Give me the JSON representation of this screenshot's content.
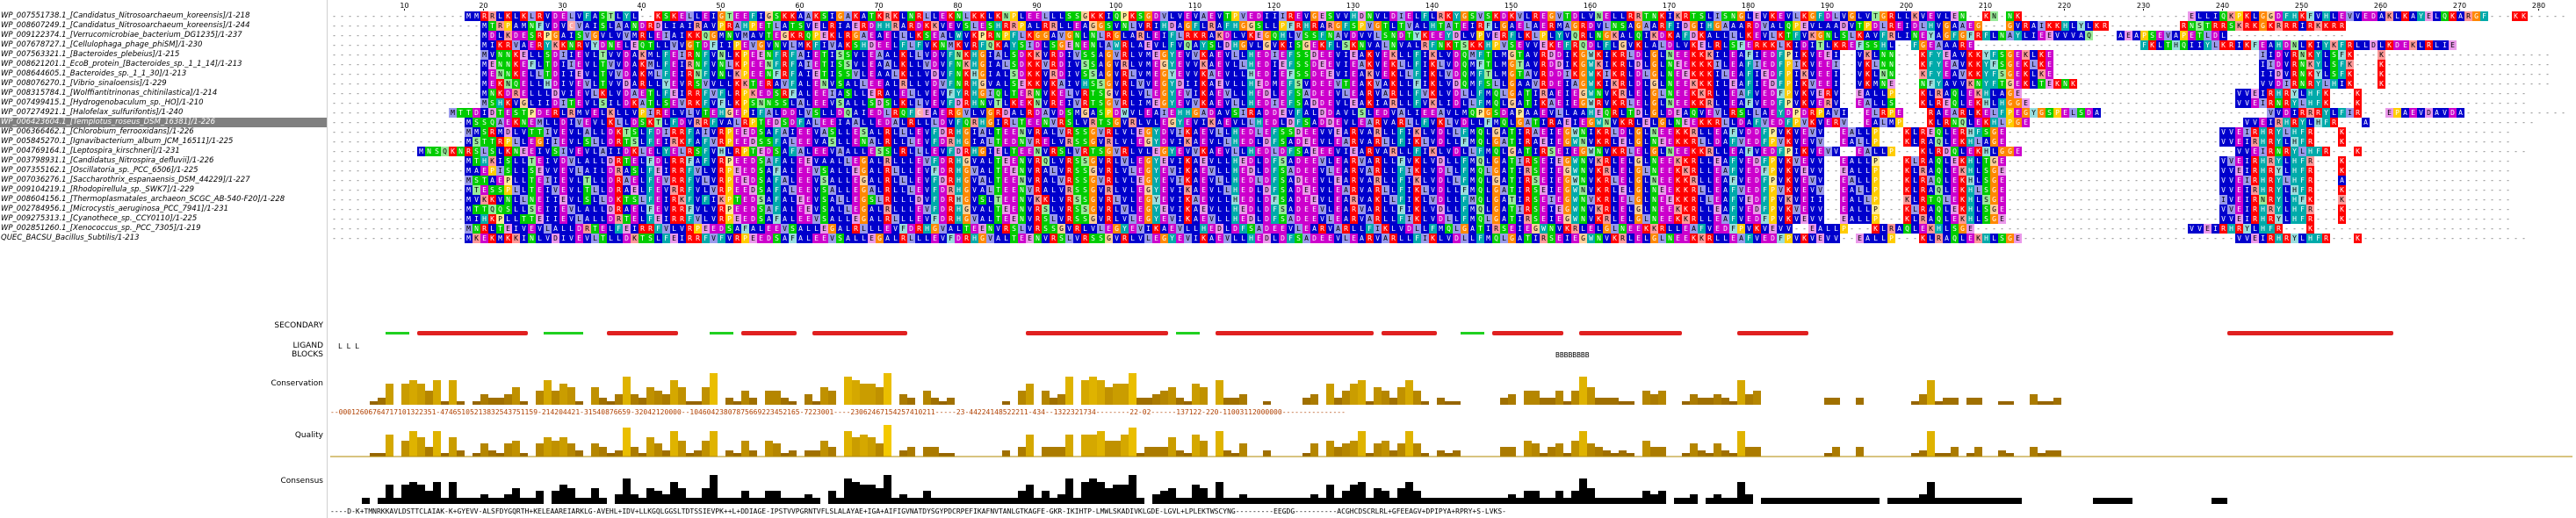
{
  "sequences": [
    {
      "name": "WP_007551738.1_[Candidatus_Nitrosoarchaeum_koreensis]/1-218",
      "seq": "-----------------MMRRLKLKLRVDELVFASTLYL--KSKELLEIGTEEFIGSKKAAKSIGAKATKRKLNRLLEKNLKKLKNPLEELLLSSGKKIQPKSGDVLVEVAEVTPVEDIIIREVGESVVHDNVLDIELFLRKYGSVSKDKVLREGVTDLVNELLRRTNKIKRTSLISNGLEVKEVLKGFDLVGLVTGRLLKVEVLEN--KN-NK---------------------ELLIQKPKLGGDFHKFVHLEVVEDAKLKAYELQKARGF---KK-----"
    },
    {
      "name": "WP_008607249.1_[Candidatus_Nitrosoarchaeum_koreensis]/1-244",
      "seq": "-------------------MTRPAMNFVDVCVAISLAANDRDLIAIRAVPRAHPETLATSVELRIAERDHHRARDKKVEVSLESHRRPALRRLLEAGGSVNLVRIHDAGFLRAFHGGSLLPFRHRARGFSPVGTLTVALHTATEIRFLGAELAERMAGRDVLNSAGAARFIDGIHGAAARDVALQPEVLAADVTPDLREIDLHVGAAEG---GVRAIKKHLYLKR---------RNSTRRSKRKGKRRRIRKKRR"
    },
    {
      "name": "WP_009122374.1_[Verrucomicrobiae_bacterium_DG1235]/1-237",
      "seq": "-------------------MDLKDESRPGAISVGVLVVMRLEIAIKKQGMNVMAVTEGKRQPEKLRGAEAELLLKSEALWVKPRNPFLKGGAVGNLNLRGLARLEIFLRKRAKDLVKEGQHLVSSFNAVDVVLSNDTYKEEYDLVPVERFLKLPLYVQRLNGKALQIKDKAFDKALLLLKEVLKTFVKGNLSLKAVFRLINEYAGFGFRFLNAYLIEEVVVAQ---AEAPSEVAPETLDL---------------"
    },
    {
      "name": "WP_007678727.1_[Cellulophaga_phage_phiSM]/1-230",
      "seq": "-------------------MIKRVAERYKKNRVYDNELEQTLLVVGTDFIIPEVGVNVLMKFIVAKSHDEELFLFVKNMKVRFQKAYSIDLSGENENLAWRLAEVLFVQAYSLDHGVLGVKISGEKFLSKNVALNVALRFNKTSKKHPVSEVVEKEFRQDLFLGVKLALDLVKELRLSFERKKLKIDITLKREFSSHL--FGEAAARE---------------------FKLTHQIIYLKRIKFEAHDNLKIYKFRLLDLKDEKLRLIE"
    },
    {
      "name": "WP_007563321.1_[Bacteroides_plebeius]/1-215",
      "seq": "-------------------MVNNKELLSDIIEVLTVVDAKMLFEIRNFVNLKPEENFRFAIETISSVLEAALKLLVDVFNKHGIALSDKKVRDIVSSAGVRLVMEGYEVVKAEVLLHEDIEFSSDEEVIEAKVEKLLFIKLVDQMFTLMGTAVRDDIKGWKIKRLDLGLNEEKKKILEAFIEDFPIKVEEI--VKLNN---KFYEAVKKYFSGEKLKE--------------------------IIDVRNKYLSFK---K---------------------"
    },
    {
      "name": "WP_008621201.1_EcoB_protein_[Bacteroides_sp._1_1_14]/1-213",
      "seq": "-------------------MENNKEFLTDIIEVLTVVDAKMLFEIRNFVNLKPEENFRFAIETISSVLEAALKLLVDVFNKHGIALSDKKVRDIVSSAGVRLVMEGYEVVKAEVLLHEDIEFSSDEEVIEAKVEKLLFIKLVDQMFTLMGTAVRDDIKGWKIKRLDLGLNEEKKKILEAFIEDFPIKVEEI--VKLNN---KFYEAVKKYFSGEKLKE--------------------------IIDVRNKYLSFK---K---------------------"
    },
    {
      "name": "WP_008644605.1_Bacteroides_sp._1_1_30]/1-213",
      "seq": "-------------------MENNKELLTDIIEVLTVVDAKMLFEIRNFVNLKPEENFRFAIETISSVLEAALKLLVDVFNKHGIALSDKKVRDIVSSAGVRLVMEGYEVVKAEVLLHEDIEFSSDEEVIEAKVEKLLFIKLVDQMFTLMGTAVRDDIKGWKIKRLDLGLNEEKKKILEAFIEDFPIKVEEI--VKLNN---KFYEAVKKYFSGEKLKE--------------------------IIDVRNKYLSFK---K---------------------"
    },
    {
      "name": "WP_008076270.1_[Vibrio_sinaloensis]/1-229",
      "seq": "-------------------MEKNQELLHDIVEVLTVVDARLLYEVRSVVLLKKTERAVFALENVSALLEEALRLLVDVFNRHGVALSEKKVKAIVHSSGVRLVVEGYDIIKAEVLLHEDMEFSVDEEVTEAKVAKLLFIKLVDQMFSLLGAAVRDEIAGWKIKRLDLGLNEEKKKILEAFIEDFPIKVEEI--VKMNE---NFYAVVKNYFTGEKLTEKNK-----------------------VVDIRNRYLHIK---K---------------------"
    },
    {
      "name": "WP_008315784.1_[Wolffiantitrinonas_chitinilastica]/1-214",
      "seq": "-------------------MNKDRELLLDVIEVLKLVDAETLFEIRRFVFLRPKEDSRFALEEIASLLERALELLVEVFYRHGIQLTERNVKELVRTSGVRLVLEGYEVIKAEVLLHEDLEFSADEEVLEARVARLLFVKLVDLLFMQLGATIRAEIEGWNVKRLELGLNEEKKRLLEAFVEDFPVKVERV--EALLP---KLRAQLEKHLAGE---------------------------VVEIRHRYLHFK---K---------------------"
    },
    {
      "name": "WP_007499415.1_[Hydrogenobaculum_sp._HO]/1-210",
      "seq": "-------------------MSHKVGLIIDITEVLSILDKATLSEVRKFVFLKPSNNSSLALEEVSALLSDSLKLLVEVFDRHNVTLKEKNVREIVRTSGVRLIMEGYEVVKAEVLLHEDIEFSADDEVLEAKIARLLFVKLIDLLFMQLGATIKAEIEGWRVKRLELGLNEEKKRLLEAFVEDFPVKVERV--EALLS---KLREQLEKHLHGGE--------------------------VVEIRNRYLHFK---K---------------------"
    },
    {
      "name": "WP_007274921.1_[Halofelax_sulfurifontis]/1-240",
      "seq": "---------------MTTDIDTESTPDERLRMVELKLLVPIRELVLVTEHGEPIFALDDLVSLLDQAIEDLRQFCEAERGVLVGRDALRDAVDSMGASPDWVLEAIEHHGADAVSIRADDEVFALDDAVLSLEDVALIEEAVLMQPGSDAPAAEVLLAAHEQRLTDLGLDEAQVEVLRSLLAEYDPDRPAVI--ELRPE---RAEARLKELFPEGYGSPELSDA---------------------VVDIRRRYLFIR---EPAEVDAVDA--------------"
    },
    {
      "name": "WP_006423604.1_[Templotus_roseus_DSM_16381]/1-226",
      "seq": "-----------------MSSQAEKNEMLLDIVEVLKLLDSKTLFDVRRFVALRPTEDSDFALEEIAALLEDALRLLLDVFQRHGIRLTEENVRSLVRTSGVRLVLEGYEVIKAEVLLHEDLDFSADDEVLEARVARLLFVKLVDLLFMQLGATIRAEIEGWNVKRLELGLNEEKKRLLDAFVEDFPVKVERV--EALMP---KLRNQLEKHLPGE---------------------------VVEIRHRYLHFR---A---------------------"
    },
    {
      "name": "WP_006366462.1_[Chlorobium_ferrooxidans]/1-226",
      "seq": "-----------------MMSRMDLVTTIVEVLALLDKTSLFDIRRFAIVRPEEDSAFAIEEVASLLESALRLLLEVFDRHGIALTEENVRALVRSSGVRLVLEGYDVIKAEVLLHEDLEFSSDEEVVEARVARLLFIKLVDLLFMQLGATIRAEIEGWNIKRLDLGLNEEKKRLLEAFVDDFPVKVEVV--EALLP---KLREQLERHFSGE---------------------------VVEIRHRYLHFR---K---------------------"
    },
    {
      "name": "WP_005845270.1_[Ignavibacterium_album_JCM_16511]/1-225",
      "seq": "-----------------MSTTRPLLEGIIEVLSLLDRTSLFEIRKFAFVRPEEDSSFALEEVASLLENALRLLLEVFDRHGIALTEDNVRELVRSSGVRLVLEGYDVIKAEVLLHEDLDFSADEEVLEARVARLLFIKLVDLLFMQLGATIRAEIEGWNVKRLELGLNEEKKRLLDAFVEDFPVKVEVV--EALLP---KLRAQLEKHLAGE---------------------------VVEIRHRYLHFR---K---------------------"
    },
    {
      "name": "WP_004769164.1_[Leptospira_kirschneri]/1-231",
      "seq": "-----------MNSQKNRSLSLKNEEIVSIVEVLAIIDKLELYELRSFVHLRPTEDSAFALEEVAALLESSLRLLLEVFDRHGIELTEENVRSLVRTSGVRLVLEGYEVVKAEVLLHEDLDFSAEEEVIEARVARLLFIKLVDLLFMQLGATIRSEIEGWNVKRLELGLNEEKKRLLEAFVEDFPIKVEVV--EALLP---KLRDQLEKHLGGE---------------------------VVEIRNRYLHFR---K---------------------"
    },
    {
      "name": "WP_003798931.1_[Candidatus_Nitrospira_defluvii]/1-226",
      "seq": "-----------------MTHKISLLTEIVDVLALLDRTELFDLRRFAFVRPEEDSAFALEEVAALLEGALRLLLEVFDRHGVALTEENVRQLVRSSGVRLVLEGYEVIKAEVLLHEDLDFSADEEVLEARVARLLFVKLVDLLFMQLGATIRSEIEGWNVKRLELGLNEEKKRLLEAFVEDFPVKVEVV--EALLP---KLRAQLEKHLTGE---------------------------VVEIRHRYLHFR---K---------------------"
    },
    {
      "name": "WP_007355162.1_[Oscillatoria_sp._PCC_6506]/1-225",
      "seq": "-----------------MAEPISLLSEVVEVLAILDRASLFEIRRFVLVRPEEDSAFALEEVSALLEGALRLLLEVFDRHGVALTEENVRALVRSSGVRLVLEGYEVIKAEVLLHEDLDFSADEEVLEARVARLLFIKLVDLLFMQLGATIRSEIEGWNVKRLELGLNEEKKRLLEAFVEDFPVKVEVV--EALLP---KLRAQLEKHLSGE---------------------------VVEIRHRYLHFR---K---------------------"
    },
    {
      "name": "WP_007036276.1_[Saccharothrix_espanaensis_DSM_44229]/1-227",
      "seq": "-----------------MSTAEPLLTEIIEVLTLLDRAELFEVRRFVLVRPEEDSAFALEEVSALLEGALRLLLEVFDRHGVALTEENVRALVRSSGVRLVLEGYEVIKAEVLLHEDLDFSADEEVLEARVARLLFIKLVDLLFMQLGATIRSEIEGWNVKRLELGLNEEKKRLLEAFVEDFPVKVEVV--EALLP---KLRAQLEKHLSGE---------------------------VVEIRHRYLHFR---A---------------------"
    },
    {
      "name": "WP_009104219.1_[Rhodopirellula_sp._SWK7]/1-229",
      "seq": "-----------------MTESSPLLTEIVEVLTLLDRAELFEVRRFVLVRPEEDSAFALEEVSALLEGALRLLLEVFDRHGVALTEENVRALVRSSGVRLVLEGYEVIKAEVLLHEDLDFSADEEVLEARVARLLFIKLVDLLFMQLGATIRSEIEGWNVKRLELGLNEEKKRLLEAFVEDFPVKVEVV--EALLP---KLRAQLEKHLSGE---------------------------VVEIRHRYLHFR---K---------------------"
    },
    {
      "name": "WP_008604156.1_[Thermoplasmatales_archaeon_SCGC_AB-540-F20]/1-228",
      "seq": "-----------------MVKKVNLLNEIIEVLSLLDKTSLFEIRKFVFIKPTEDSAFALEEVSALLEGSLRLLLDVFDRHGVSLTEENVKKLVRSSGVRLVLEGYEVIKAEVLLHEDLDFSADEEVLEARVAKLLFIKLVDLLFMQLGATIRSEIEGWNVKRLELGLNEEKKRLLEAFVEDFPVKVEII--EALLP---KLRTQLEKHLSGE---------------------------IVEIRNRYLHFK---K---------------------"
    },
    {
      "name": "WP_002784956.1_[Microcystis_aeruginosa_PCC_7941]/1-231",
      "seq": "-----------------MTTQQSLLSEIIEVLALLDRAELFEVRRFVLVRPEEDSAFALEEVSALLEGALRLLLEVFDRHGVALTEENVRSLVRSSGVRLVLEGYEVIKAEVLLHEDLDFSADEEVLEARVARLLFIKLVDLLFMQLGATIRSEIEGWNVKRLELGLNEEKKRLLEAFVEDFPVKVEVV--EALLP---KLRAQLEKHLSGE---------------------------VVEIRHRYLHFR---K---------------------"
    },
    {
      "name": "WP_009275313.1_[Cyanothece_sp._CCY0110]/1-225",
      "seq": "-----------------MIHKPLLTTEIIEVLALLDRTELFEIRRFVLVRPEEDSAFALEEVSALLEGALRLLLEVFDRHGVALTEENVRSLVRSSGVRLVLEGYEVIKAEVLLHEDLDFSADEEVLEARVARLLFIKLVDLLFMQLGATIRSEIEGWNVKRLELGLNEEKKRLLEAFVEDFPVKVEVV--EALLP---KLRAQLEKHLSGE---------------------------VVEIRHRYLHFR---K---------------------"
    },
    {
      "name": "WP_002851260.1_[Xenococcus_sp._PCC_7305]/1-219",
      "seq": "-----------------MNRLTEIVEVLALLDRTELFEIRRFVLVRPEEDSAFALEEVSALLEGALRLLLEVFDRHGVALTEENVRSLVRSSGVRLVLEGYEVIKAEVLLHEDLDFSADEEVLEARVARLLFIKLVDLLFMQLGATIRSEIEGWNVKRLELGLNEEKKRLLEAFVEDFPVKVEVV--EALLP---KLRAQLEKHLSGE---------------------------VVEIRHRYLHFR---K-------------------------"
    },
    {
      "name": "QUEC_BACSU_Bacillus_Subtilis/1-213",
      "seq": "-----------------MKEKMKKINLVDIVEVLTLLDKTSLFEIRRFVFVRPEEDSAFALEEVSALLEGALRLLLEVFDRHGVALTEENVRSLVRSSGVRLVLEGYEVIKAEVLLHEDLDFSADEEVLEARVARLLFIKLVDLLFMQLGATIRSEIEGWNVKRLELGLNEEKKRLLEAFVEDFPVKVEVV--EALLP---KLRAQLEKHLSGE---------------------------VVEIRHRYLHFR---K---------------------"
    }
  ],
  "selected_sequence_index": 11,
  "ruler_ticks": [
    "10",
    "20",
    "30",
    "40",
    "50",
    "60",
    "70",
    "80",
    "90",
    "100",
    "110",
    "120",
    "130",
    "140",
    "150",
    "160",
    "170",
    "180",
    "190",
    "200",
    "210",
    "220",
    "230",
    "240",
    "250",
    "260",
    "270",
    "280"
  ],
  "annotation_labels": {
    "secondary": "SECONDARY",
    "ligand": "LIGAND",
    "blocks": "BLOCKS",
    "conservation": "Conservation",
    "quality": "Quality",
    "consensus": "Consensus"
  },
  "ligand_marks": "L L  L",
  "blocks_marks": "BBBBBBBB",
  "conservation_digits": "--00012606764717101322351-47465105213832543751159-214204421-31540876659-32042120000--10460423807875669223452165-7223001----23062467154257410211-----23-44224148522211-434--1322321734--------22-02------137122-220-11003112000000---------------",
  "consensus_text": "----D-K+TMNRKKAVLDSTTCLAIAK-K+GYEVV-ALSFDYGQRTH+KELEAAREIARKLG-AVEHL+IDV+LLKGQLGGSLTDTSSIEVPK++L+DDIAGE-IPSTVVPGRNTVFLSLALAYAE+IGA+AIFIGVNATDYSGYPDCRPEFIKAFNVTANLGTKAGFE-GKR-IKIHTP-LMWLSKADIVKLGDE-LGVL+LPLEKTWSCYNG---------EEGDG----------ACGHCDSCRLRL+GFEEAGV+DPIPYA+RPRY+S-LVKS-",
  "palette": {
    "hydrophobic": "#0000cc",
    "positive": "#ff0000",
    "negative": "#cc00cc",
    "polar": "#00cc00",
    "glycine": "#ff8800",
    "proline": "#ffcc00",
    "aromatic": "#00aaaa",
    "cysteine": "#ffaaaa",
    "helix": "#e02020",
    "strand": "#20d020",
    "conservation_high": "#ffd400",
    "conservation_low": "#8b5a00",
    "consensus_bar": "#000000",
    "selected_row": "#808080"
  },
  "secondary_structure": [
    {
      "type": "strand",
      "start": 7,
      "end": 9
    },
    {
      "type": "helix",
      "start": 11,
      "end": 24
    },
    {
      "type": "strand",
      "start": 27,
      "end": 31
    },
    {
      "type": "helix",
      "start": 35,
      "end": 43
    },
    {
      "type": "strand",
      "start": 48,
      "end": 50
    },
    {
      "type": "helix",
      "start": 52,
      "end": 58
    },
    {
      "type": "helix",
      "start": 61,
      "end": 72
    },
    {
      "type": "helix",
      "start": 88,
      "end": 105
    },
    {
      "type": "strand",
      "start": 107,
      "end": 109
    },
    {
      "type": "helix",
      "start": 112,
      "end": 131
    },
    {
      "type": "helix",
      "start": 133,
      "end": 139
    },
    {
      "type": "strand",
      "start": 143,
      "end": 145
    },
    {
      "type": "helix",
      "start": 147,
      "end": 155
    },
    {
      "type": "helix",
      "start": 158,
      "end": 170
    },
    {
      "type": "helix",
      "start": 178,
      "end": 186
    },
    {
      "type": "helix",
      "start": 240,
      "end": 260
    }
  ]
}
